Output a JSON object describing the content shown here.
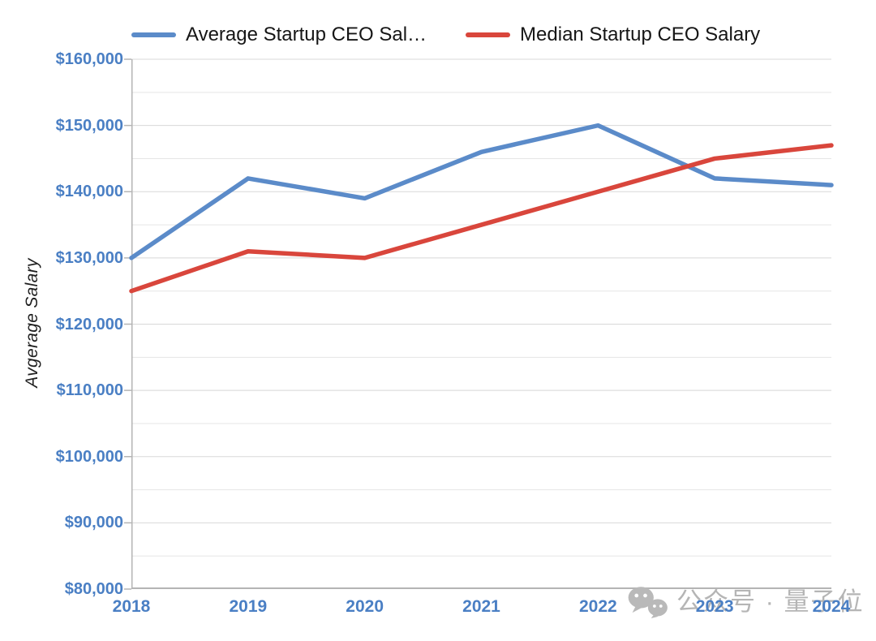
{
  "chart_data": {
    "type": "line",
    "title": "",
    "categories": [
      "2018",
      "2019",
      "2020",
      "2021",
      "2022",
      "2023",
      "2024"
    ],
    "series": [
      {
        "name": "Average Startup CEO Salary",
        "legend_label": "Average Startup CEO Sal…",
        "color": "#5b8bc9",
        "values": [
          130000,
          142000,
          139000,
          146000,
          150000,
          142000,
          141000
        ]
      },
      {
        "name": "Median Startup CEO Salary",
        "legend_label": "Median Startup CEO Salary",
        "color": "#d9463c",
        "values": [
          125000,
          131000,
          130000,
          135000,
          140000,
          145000,
          147000
        ]
      }
    ],
    "xlabel": "",
    "ylabel": "Avgerage Salary",
    "ylim": [
      80000,
      160000
    ],
    "y_major_step": 10000,
    "y_minor_step": 5000,
    "yticks": [
      {
        "value": 160000,
        "label": "$160,000"
      },
      {
        "value": 150000,
        "label": "$150,000"
      },
      {
        "value": 140000,
        "label": "$140,000"
      },
      {
        "value": 130000,
        "label": "$130,000"
      },
      {
        "value": 120000,
        "label": "$120,000"
      },
      {
        "value": 110000,
        "label": "$110,000"
      },
      {
        "value": 100000,
        "label": "$100,000"
      },
      {
        "value": 90000,
        "label": "$90,000"
      },
      {
        "value": 80000,
        "label": "$80,000"
      }
    ],
    "legend_position": "top",
    "grid": "horizontal-major-and-minor"
  },
  "watermark": {
    "icon": "wechat-icon",
    "text": "公众号 · 量子位",
    "color": "#b5b5b5"
  },
  "colors": {
    "tick_label_blue": "#4a7fc4",
    "average_line": "#5b8bc9",
    "median_line": "#d9463c",
    "major_gridline": "#d8d8d8",
    "minor_gridline": "#e5e5e5",
    "axis_line": "#b4b4b4"
  }
}
